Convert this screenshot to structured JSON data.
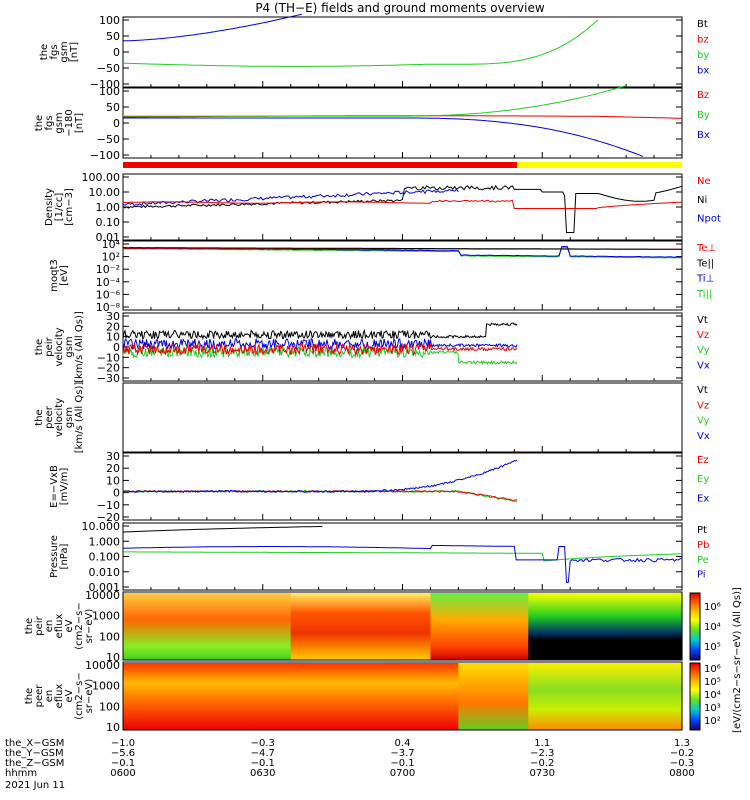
{
  "title": "P4 (TH−E) fields and ground moments overview",
  "colors": {
    "black": "#000000",
    "red": "#ee0000",
    "green": "#22cc22",
    "blue": "#0000dd",
    "yellow": "#ffff00"
  },
  "xaxis": {
    "labels": [
      {
        "name": "the_X−GSM",
        "vals": [
          "−1.0",
          "−0.3",
          "0.4",
          "1.1",
          "1.3"
        ]
      },
      {
        "name": "the_Y−GSM",
        "vals": [
          "−5.6",
          "−4.7",
          "−3.7",
          "−2.3",
          "−0.2"
        ]
      },
      {
        "name": "the_Z−GSM",
        "vals": [
          "−0.1",
          "−0.1",
          "−0.1",
          "−0.2",
          "−0.3"
        ]
      },
      {
        "name": "hhmm",
        "vals": [
          "0600",
          "0630",
          "0700",
          "0730",
          "0800"
        ]
      }
    ],
    "date": "2021 Jun 11"
  },
  "panels": [
    {
      "id": "fgs",
      "ylabel": [
        "the",
        "fgs",
        "gsm",
        "[nT]"
      ],
      "ticks": [
        "100",
        "50",
        "0",
        "−50",
        "−100"
      ],
      "legend": [
        {
          "t": "Bt",
          "c": "black"
        },
        {
          "t": "bz",
          "c": "red"
        },
        {
          "t": "by",
          "c": "green"
        },
        {
          "t": "bx",
          "c": "blue"
        }
      ]
    },
    {
      "id": "fgs2",
      "ylabel": [
        "the",
        "fgs",
        "gsm",
        "−180",
        "[nT]"
      ],
      "ticks": [
        "100",
        "50",
        "0",
        "−50",
        "−100"
      ],
      "legend": [
        {
          "t": "Bz",
          "c": "red"
        },
        {
          "t": "By",
          "c": "green"
        },
        {
          "t": "Bx",
          "c": "blue"
        }
      ]
    },
    {
      "id": "density",
      "ylabel": [
        "Density",
        "[1/cc]",
        "[cm−3]"
      ],
      "ticks": [
        "100.00",
        "10.00",
        "1.00",
        "0.10",
        "0.01"
      ],
      "legend": [
        {
          "t": "Ne",
          "c": "red"
        },
        {
          "t": "Ni",
          "c": "black"
        },
        {
          "t": "Npot",
          "c": "blue"
        }
      ]
    },
    {
      "id": "temp",
      "ylabel": [
        "moqt3",
        "[eV]"
      ],
      "ticks": [
        "10⁴",
        "10²",
        "10⁻²",
        "10⁻⁴",
        "10⁻⁶",
        "10⁻⁸"
      ],
      "legend": [
        {
          "t": "Te⊥",
          "c": "red"
        },
        {
          "t": "Te||",
          "c": "black"
        },
        {
          "t": "Ti⊥",
          "c": "blue"
        },
        {
          "t": "Ti||",
          "c": "green"
        }
      ]
    },
    {
      "id": "peir",
      "ylabel": [
        "the",
        "peir",
        "velocity",
        "gsm",
        "[km/s (All Qs)]"
      ],
      "ticks": [
        "30",
        "20",
        "10",
        "0",
        "−10",
        "−20",
        "−30"
      ],
      "legend": [
        {
          "t": "Vt",
          "c": "black"
        },
        {
          "t": "Vz",
          "c": "red"
        },
        {
          "t": "Vy",
          "c": "green"
        },
        {
          "t": "Vx",
          "c": "blue"
        }
      ]
    },
    {
      "id": "peer",
      "ylabel": [
        "the",
        "peer",
        "velocity",
        "gsm",
        "[km/s (All Qs)]"
      ],
      "ticks": [],
      "legend": [
        {
          "t": "Vt",
          "c": "black"
        },
        {
          "t": "Vz",
          "c": "red"
        },
        {
          "t": "Vy",
          "c": "green"
        },
        {
          "t": "Vx",
          "c": "blue"
        }
      ]
    },
    {
      "id": "efield",
      "ylabel": [
        "E=−VxB",
        "[mV/m]"
      ],
      "ticks": [
        "30",
        "20",
        "10",
        "0",
        "−10",
        "−20"
      ],
      "legend": [
        {
          "t": "Ez",
          "c": "red"
        },
        {
          "t": "Ey",
          "c": "green"
        },
        {
          "t": "Ex",
          "c": "blue"
        }
      ]
    },
    {
      "id": "pressure",
      "ylabel": [
        "Pressure",
        "[nPa]"
      ],
      "ticks": [
        "10.000",
        "1.000",
        "0.100",
        "0.010",
        "0.001"
      ],
      "legend": [
        {
          "t": "Pt",
          "c": "black"
        },
        {
          "t": "Pb",
          "c": "red"
        },
        {
          "t": "Pe",
          "c": "green"
        },
        {
          "t": "Pi",
          "c": "blue"
        }
      ]
    },
    {
      "id": "peirspec",
      "ylabel": [
        "the",
        "peir",
        "en",
        "eflux",
        "eV",
        "(cm2−s−",
        "sr−eV)"
      ],
      "ticks": [
        "10000",
        "1000",
        "100",
        "10"
      ]
    },
    {
      "id": "peerspec",
      "ylabel": [
        "the",
        "peer",
        "en",
        "eflux",
        "eV",
        "(cm2−s−",
        "sr−eV)"
      ],
      "ticks": [
        "10000",
        "1000",
        "100",
        "10"
      ]
    }
  ],
  "colorbar": {
    "upper_ticks": [
      "10⁶",
      "10⁴",
      "10⁵"
    ],
    "lower_ticks": [
      "10⁶",
      "10⁵",
      "10⁴",
      "10³",
      "10²"
    ],
    "label": "[eV/(cm2−s−sr−eV) (All Qs)]"
  },
  "chart_data": {
    "type": "line",
    "title": "P4 (TH−E) fields and ground moments overview",
    "x_ticks": [
      "0600",
      "0630",
      "0700",
      "0730",
      "0800"
    ],
    "xlim": [
      "06:00",
      "08:00"
    ],
    "series": [
      {
        "panel": "fgs",
        "name": "Bt",
        "values": [
          [
            0,
            100
          ],
          [
            1,
            100
          ]
        ]
      },
      {
        "panel": "fgs",
        "name": "by",
        "values": [
          [
            0,
            -35
          ],
          [
            0.25,
            -45
          ],
          [
            0.5,
            -45
          ],
          [
            0.6,
            -40
          ],
          [
            0.7,
            -10
          ],
          [
            0.78,
            40
          ],
          [
            0.85,
            100
          ]
        ]
      },
      {
        "panel": "fgs",
        "name": "bx",
        "values": [
          [
            0,
            35
          ],
          [
            0.1,
            50
          ],
          [
            0.2,
            70
          ],
          [
            0.3,
            100
          ]
        ]
      },
      {
        "panel": "fgs2",
        "name": "Bz",
        "values": [
          [
            0,
            2
          ],
          [
            0.4,
            5
          ],
          [
            0.6,
            6
          ],
          [
            0.8,
            5
          ],
          [
            1,
            -5
          ]
        ]
      },
      {
        "panel": "fgs2",
        "name": "By",
        "values": [
          [
            0,
            8
          ],
          [
            0.4,
            5
          ],
          [
            0.6,
            10
          ],
          [
            0.8,
            45
          ],
          [
            0.88,
            100
          ]
        ]
      },
      {
        "panel": "fgs2",
        "name": "Bx",
        "values": [
          [
            0,
            0
          ],
          [
            0.5,
            0
          ],
          [
            0.7,
            -15
          ],
          [
            0.8,
            -50
          ],
          [
            0.9,
            -120
          ]
        ]
      },
      {
        "panel": "density",
        "name": "Ni",
        "values": [
          [
            0,
            1
          ],
          [
            0.3,
            2
          ],
          [
            0.5,
            10
          ],
          [
            0.6,
            30
          ],
          [
            0.7,
            30
          ],
          [
            0.8,
            0.03
          ],
          [
            0.9,
            15
          ],
          [
            1,
            40
          ]
        ]
      },
      {
        "panel": "density",
        "name": "Ne",
        "values": [
          [
            0,
            2
          ],
          [
            0.5,
            3
          ],
          [
            0.6,
            2
          ],
          [
            0.7,
            0.8
          ],
          [
            0.8,
            1
          ],
          [
            1,
            2
          ]
        ]
      },
      {
        "panel": "density",
        "name": "Npot",
        "values": [
          [
            0,
            1.5
          ],
          [
            0.3,
            3
          ],
          [
            0.5,
            20
          ],
          [
            0.6,
            100
          ]
        ]
      }
    ]
  }
}
